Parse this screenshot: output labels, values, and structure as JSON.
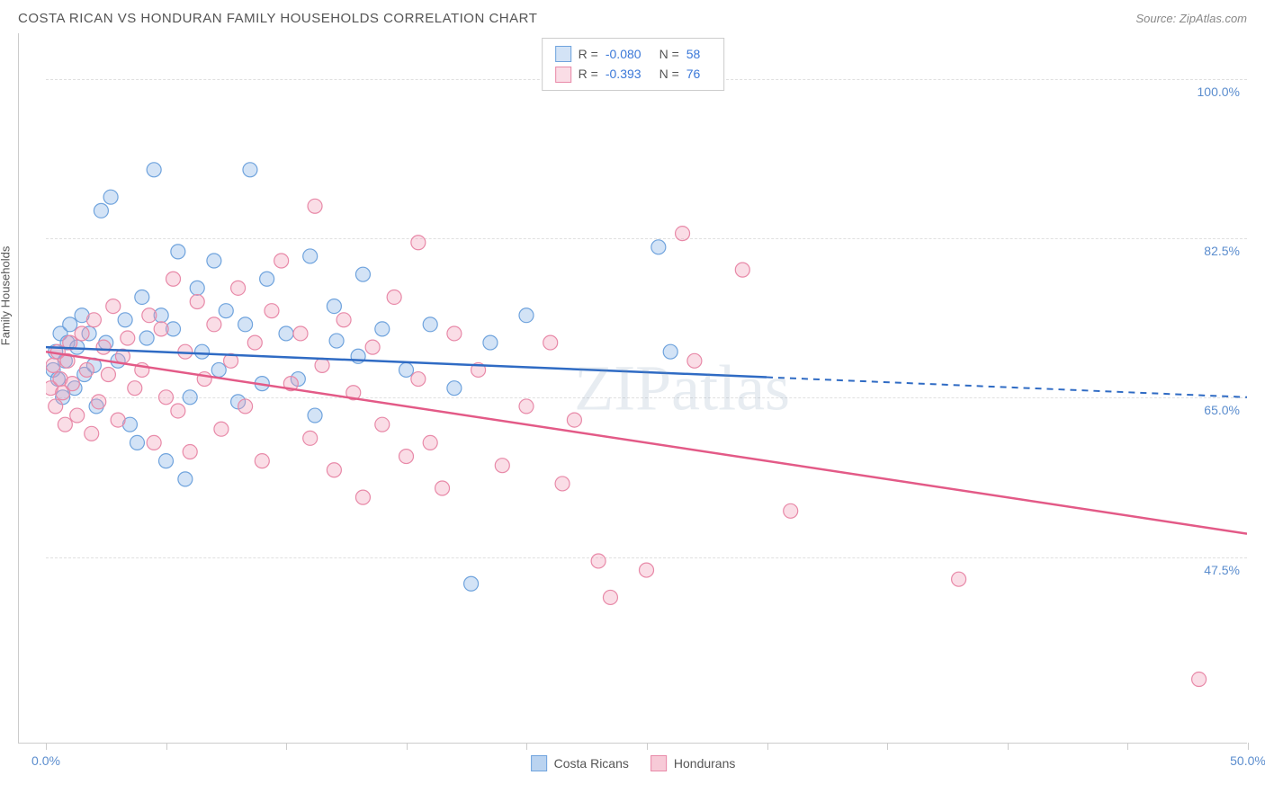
{
  "title": "COSTA RICAN VS HONDURAN FAMILY HOUSEHOLDS CORRELATION CHART",
  "source": "Source: ZipAtlas.com",
  "ylabel": "Family Households",
  "watermark": "ZIPatlas",
  "chart": {
    "type": "scatter",
    "xlim": [
      0,
      50
    ],
    "ylim": [
      30,
      105
    ],
    "yticks": [
      {
        "value": 47.5,
        "label": "47.5%"
      },
      {
        "value": 65.0,
        "label": "65.0%"
      },
      {
        "value": 82.5,
        "label": "82.5%"
      },
      {
        "value": 100.0,
        "label": "100.0%"
      }
    ],
    "xticks": [
      0,
      5,
      10,
      15,
      20,
      25,
      30,
      35,
      40,
      45,
      50
    ],
    "xticklabels": [
      {
        "value": 0,
        "label": "0.0%"
      },
      {
        "value": 50,
        "label": "50.0%"
      }
    ],
    "background_color": "#ffffff",
    "grid_color": "#e0e0e0",
    "marker_radius": 8,
    "series": [
      {
        "name": "Costa Ricans",
        "fill": "rgba(129,175,228,0.35)",
        "stroke": "#6fa3dd",
        "R": "-0.080",
        "N": "58",
        "trend": {
          "y_at_x0": 70.5,
          "y_at_x50": 65.0,
          "solid_to_x": 30,
          "color": "#2f6bc4"
        },
        "points": [
          [
            0.3,
            68
          ],
          [
            0.4,
            70
          ],
          [
            0.5,
            67
          ],
          [
            0.6,
            72
          ],
          [
            0.7,
            65
          ],
          [
            0.8,
            69
          ],
          [
            0.9,
            71
          ],
          [
            1.0,
            73
          ],
          [
            1.2,
            66
          ],
          [
            1.3,
            70.5
          ],
          [
            1.5,
            74
          ],
          [
            1.6,
            67.5
          ],
          [
            1.8,
            72
          ],
          [
            2.0,
            68.5
          ],
          [
            2.1,
            64
          ],
          [
            2.3,
            85.5
          ],
          [
            2.5,
            71
          ],
          [
            2.7,
            87
          ],
          [
            3.0,
            69
          ],
          [
            3.3,
            73.5
          ],
          [
            3.5,
            62
          ],
          [
            3.8,
            60
          ],
          [
            4.0,
            76
          ],
          [
            4.2,
            71.5
          ],
          [
            4.5,
            90
          ],
          [
            4.8,
            74
          ],
          [
            5.0,
            58
          ],
          [
            5.3,
            72.5
          ],
          [
            5.5,
            81
          ],
          [
            5.8,
            56
          ],
          [
            6.0,
            65
          ],
          [
            6.3,
            77
          ],
          [
            6.5,
            70
          ],
          [
            7.0,
            80
          ],
          [
            7.2,
            68
          ],
          [
            7.5,
            74.5
          ],
          [
            8.0,
            64.5
          ],
          [
            8.3,
            73
          ],
          [
            8.5,
            90
          ],
          [
            9.0,
            66.5
          ],
          [
            9.2,
            78
          ],
          [
            10.0,
            72
          ],
          [
            10.5,
            67
          ],
          [
            11.0,
            80.5
          ],
          [
            11.2,
            63
          ],
          [
            12.0,
            75
          ],
          [
            12.1,
            71.2
          ],
          [
            13.0,
            69.5
          ],
          [
            13.2,
            78.5
          ],
          [
            14.0,
            72.5
          ],
          [
            15.0,
            68
          ],
          [
            16.0,
            73
          ],
          [
            17.0,
            66
          ],
          [
            17.7,
            44.5
          ],
          [
            18.5,
            71
          ],
          [
            20.0,
            74
          ],
          [
            25.5,
            81.5
          ],
          [
            26.0,
            70
          ]
        ]
      },
      {
        "name": "Hondurans",
        "fill": "rgba(241,158,183,0.35)",
        "stroke": "#e889a8",
        "R": "-0.393",
        "N": "76",
        "trend": {
          "y_at_x0": 70.0,
          "y_at_x50": 50.0,
          "solid_to_x": 50,
          "color": "#e35a87"
        },
        "points": [
          [
            0.2,
            66
          ],
          [
            0.3,
            68.5
          ],
          [
            0.4,
            64
          ],
          [
            0.5,
            70
          ],
          [
            0.6,
            67
          ],
          [
            0.7,
            65.5
          ],
          [
            0.8,
            62
          ],
          [
            0.9,
            69
          ],
          [
            1.0,
            71
          ],
          [
            1.1,
            66.5
          ],
          [
            1.3,
            63
          ],
          [
            1.5,
            72
          ],
          [
            1.7,
            68
          ],
          [
            1.9,
            61
          ],
          [
            2.0,
            73.5
          ],
          [
            2.2,
            64.5
          ],
          [
            2.4,
            70.5
          ],
          [
            2.6,
            67.5
          ],
          [
            2.8,
            75
          ],
          [
            3.0,
            62.5
          ],
          [
            3.2,
            69.5
          ],
          [
            3.4,
            71.5
          ],
          [
            3.7,
            66
          ],
          [
            4.0,
            68
          ],
          [
            4.3,
            74
          ],
          [
            4.5,
            60
          ],
          [
            4.8,
            72.5
          ],
          [
            5.0,
            65
          ],
          [
            5.3,
            78
          ],
          [
            5.5,
            63.5
          ],
          [
            5.8,
            70
          ],
          [
            6.0,
            59
          ],
          [
            6.3,
            75.5
          ],
          [
            6.6,
            67
          ],
          [
            7.0,
            73
          ],
          [
            7.3,
            61.5
          ],
          [
            7.7,
            69
          ],
          [
            8.0,
            77
          ],
          [
            8.3,
            64
          ],
          [
            8.7,
            71
          ],
          [
            9.0,
            58
          ],
          [
            9.4,
            74.5
          ],
          [
            9.8,
            80
          ],
          [
            10.2,
            66.5
          ],
          [
            10.6,
            72
          ],
          [
            11.0,
            60.5
          ],
          [
            11.2,
            86
          ],
          [
            11.5,
            68.5
          ],
          [
            12.0,
            57
          ],
          [
            12.4,
            73.5
          ],
          [
            12.8,
            65.5
          ],
          [
            13.2,
            54
          ],
          [
            13.6,
            70.5
          ],
          [
            14.0,
            62
          ],
          [
            14.5,
            76
          ],
          [
            15.0,
            58.5
          ],
          [
            15.5,
            67
          ],
          [
            15.5,
            82
          ],
          [
            16.0,
            60
          ],
          [
            16.5,
            55
          ],
          [
            17.0,
            72
          ],
          [
            18.0,
            68
          ],
          [
            19.0,
            57.5
          ],
          [
            20.0,
            64
          ],
          [
            21.0,
            71
          ],
          [
            22.0,
            62.5
          ],
          [
            23.0,
            47
          ],
          [
            23.5,
            43
          ],
          [
            25.0,
            46
          ],
          [
            26.5,
            83
          ],
          [
            27.0,
            69
          ],
          [
            29.0,
            79
          ],
          [
            31.0,
            52.5
          ],
          [
            38.0,
            45
          ],
          [
            48.0,
            34
          ],
          [
            21.5,
            55.5
          ]
        ]
      }
    ]
  },
  "legend": [
    {
      "label": "Costa Ricans",
      "fill": "rgba(129,175,228,0.55)",
      "stroke": "#6fa3dd"
    },
    {
      "label": "Hondurans",
      "fill": "rgba(241,158,183,0.55)",
      "stroke": "#e889a8"
    }
  ]
}
